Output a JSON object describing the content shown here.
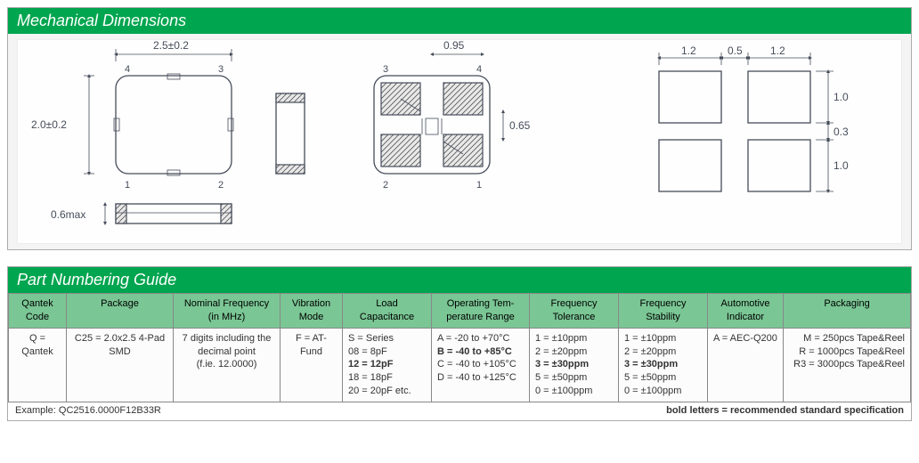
{
  "mechanical": {
    "title": "Mechanical Dimensions",
    "dims": {
      "width": "2.5±0.2",
      "height": "2.0±0.2",
      "thickness": "0.6max",
      "pad_pitch_x": "0.95",
      "pad_size_y": "0.65",
      "land_w": "1.2",
      "land_gap": "0.5",
      "land_h": "1.0",
      "land_gap_y": "0.3"
    },
    "top_pins": {
      "tl": "4",
      "tr": "3",
      "bl": "1",
      "br": "2"
    },
    "bottom_pins": {
      "tl": "3",
      "tr": "4",
      "bl": "2",
      "br": "1"
    }
  },
  "partnum": {
    "title": "Part Numbering Guide",
    "columns": [
      "Qantek\nCode",
      "Package",
      "Nominal Frequency\n(in MHz)",
      "Vibration\nMode",
      "Load\nCapacitance",
      "Operating Tem-\nperature Range",
      "Frequency\nTolerance",
      "Frequency\nStability",
      "Automotive\nIndicator",
      "Packaging"
    ],
    "col_widths": [
      "65px",
      "120px",
      "120px",
      "70px",
      "100px",
      "110px",
      "100px",
      "100px",
      "85px",
      "auto"
    ],
    "cells": [
      [
        {
          "t": "Q = Qantek"
        }
      ],
      [
        {
          "t": "C25 = 2.0x2.5 4-Pad SMD"
        }
      ],
      [
        {
          "t": "7 digits including the decimal point"
        },
        {
          "t": "(f.ie. 12.0000)"
        }
      ],
      [
        {
          "t": "F = AT-Fund"
        }
      ],
      [
        {
          "t": "S = Series"
        },
        {
          "t": "08 = 8pF"
        },
        {
          "t": "12 = 12pF",
          "b": true
        },
        {
          "t": "18 = 18pF"
        },
        {
          "t": "20 = 20pF   etc."
        }
      ],
      [
        {
          "t": "A = -20 to +70°C"
        },
        {
          "t": "B = -40 to +85°C",
          "b": true
        },
        {
          "t": "C = -40 to +105°C"
        },
        {
          "t": "D = -40 to +125°C"
        }
      ],
      [
        {
          "t": "1 = ±10ppm"
        },
        {
          "t": "2 = ±20ppm"
        },
        {
          "t": "3 = ±30ppm",
          "b": true
        },
        {
          "t": "5 = ±50ppm"
        },
        {
          "t": "0 = ±100ppm"
        }
      ],
      [
        {
          "t": "1 = ±10ppm"
        },
        {
          "t": "2 = ±20ppm"
        },
        {
          "t": "3 = ±30ppm",
          "b": true
        },
        {
          "t": "5 = ±50ppm"
        },
        {
          "t": "0 = ±100ppm"
        }
      ],
      [
        {
          "t": "A = AEC-Q200"
        }
      ],
      [
        {
          "t": "M = 250pcs Tape&Reel"
        },
        {
          "t": "R = 1000pcs Tape&Reel"
        },
        {
          "t": "R3 = 3000pcs Tape&Reel"
        }
      ]
    ],
    "footer_left": "Example: QC2516.0000F12B33R",
    "footer_right": "bold letters = recommended standard specification"
  }
}
